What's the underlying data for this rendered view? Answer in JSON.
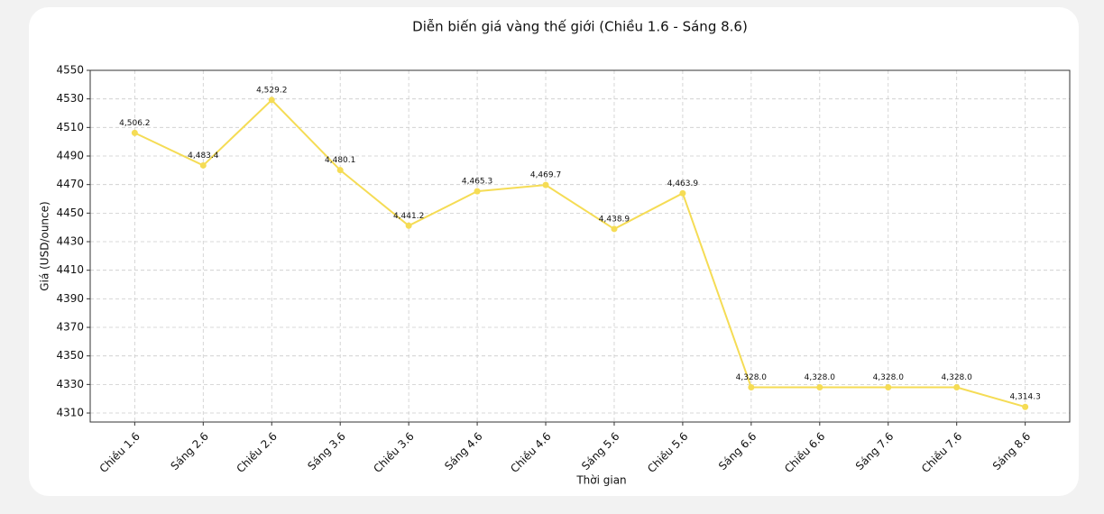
{
  "chart_data": {
    "type": "line",
    "title": "Diễn biến giá vàng thế giới (Chiều 1.6 - Sáng 8.6)",
    "x_label": "Thời gian",
    "y_label": "Giá (USD/ounce)",
    "categories": [
      "Chiều 1.6",
      "Sáng 2.6",
      "Chiều 2.6",
      "Sáng 3.6",
      "Chiều 3.6",
      "Sáng 4.6",
      "Chiều 4.6",
      "Sáng 5.6",
      "Chiều 5.6",
      "Sáng 6.6",
      "Chiều 6.6",
      "Sáng 7.6",
      "Chiều 7.6",
      "Sáng 8.6"
    ],
    "series": [
      {
        "color": "#f5dc55",
        "values": [
          4506.2,
          4483.4,
          4529.2,
          4480.1,
          4441.2,
          4465.3,
          4469.7,
          4438.9,
          4463.9,
          4328.0,
          4328.0,
          4328.0,
          4328.0,
          4314.3
        ],
        "value_labels": [
          "4,506.2",
          "4,483.4",
          "4,529.2",
          "4,480.1",
          "4,441.2",
          "4,465.3",
          "4,469.7",
          "4,438.9",
          "4,463.9",
          "4,328.0",
          "4,328.0",
          "4,328.0",
          "4,328.0",
          "4,314.3"
        ]
      }
    ],
    "ylim": [
      4303.7,
      4550
    ],
    "yticks": [
      4310,
      4330,
      4350,
      4370,
      4390,
      4410,
      4430,
      4450,
      4470,
      4490,
      4510,
      4530,
      4550
    ],
    "grid": true
  }
}
